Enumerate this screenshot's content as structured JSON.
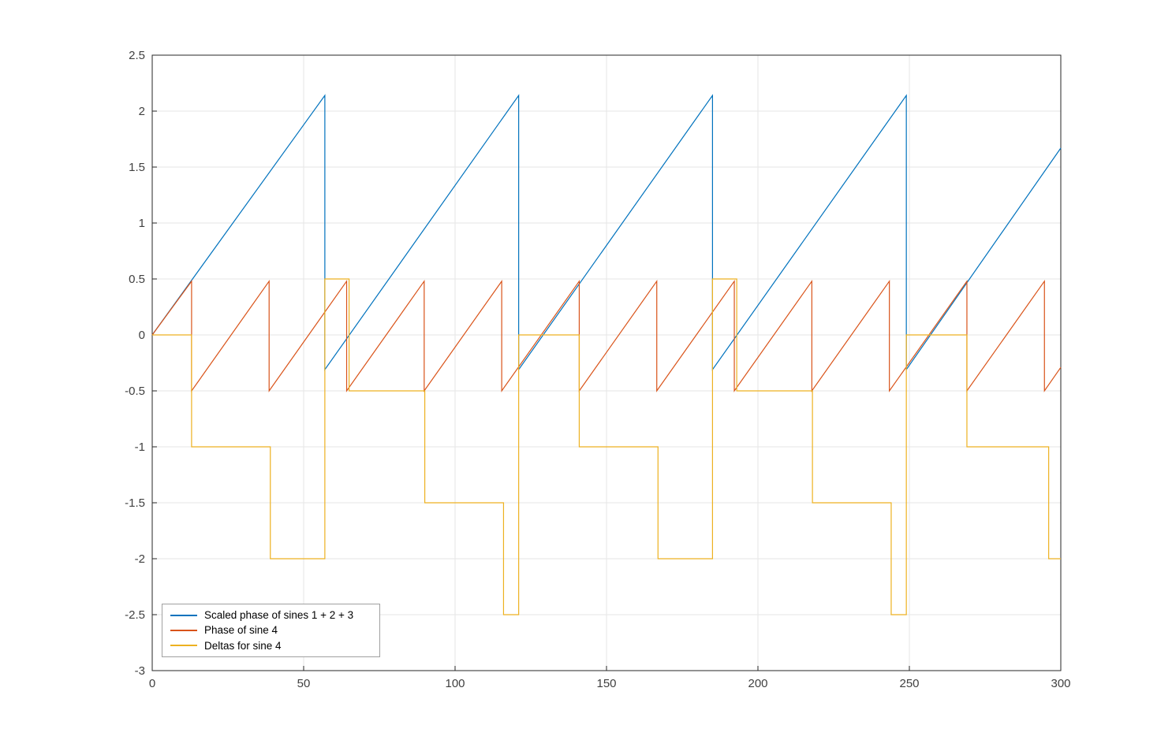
{
  "figure": {
    "background": "#ffffff"
  },
  "chart_data": {
    "type": "line",
    "title": "",
    "xlabel": "",
    "ylabel": "",
    "xlim": [
      0,
      300
    ],
    "ylim": [
      -3,
      2.5
    ],
    "x_ticks": [
      0,
      50,
      100,
      150,
      200,
      250,
      300
    ],
    "x_tick_labels": [
      "0",
      "50",
      "100",
      "150",
      "200",
      "250",
      "300"
    ],
    "y_ticks": [
      -3,
      -2.5,
      -2,
      -1.5,
      -1,
      -0.5,
      0,
      0.5,
      1,
      1.5,
      2,
      2.5
    ],
    "y_tick_labels": [
      "-3",
      "-2.5",
      "-2",
      "-1.5",
      "-1",
      "-0.5",
      "0",
      "0.5",
      "1",
      "1.5",
      "2",
      "2.5"
    ],
    "grid": true,
    "grid_color": "#e6e6e6",
    "axis_color": "#262626",
    "tick_label_color": "#404040",
    "legend_position": "bottom-left",
    "series": [
      {
        "name": "Scaled phase of sines 1 + 2 + 3",
        "color": "#0072BD",
        "points": [
          [
            0,
            0
          ],
          [
            57,
            2.14
          ],
          [
            57,
            -0.31
          ],
          [
            121,
            2.14
          ],
          [
            121,
            -0.31
          ],
          [
            185,
            2.14
          ],
          [
            185,
            -0.31
          ],
          [
            249,
            2.14
          ],
          [
            249,
            -0.31
          ],
          [
            300,
            1.67
          ]
        ]
      },
      {
        "name": "Phase of sine 4",
        "color": "#D95319",
        "points": [
          [
            0,
            0
          ],
          [
            13,
            0.48
          ],
          [
            13,
            -0.5
          ],
          [
            38.6,
            0.48
          ],
          [
            38.6,
            -0.5
          ],
          [
            64.2,
            0.48
          ],
          [
            64.2,
            -0.5
          ],
          [
            89.8,
            0.48
          ],
          [
            89.8,
            -0.5
          ],
          [
            115.4,
            0.48
          ],
          [
            115.4,
            -0.5
          ],
          [
            141,
            0.48
          ],
          [
            141,
            -0.5
          ],
          [
            166.6,
            0.48
          ],
          [
            166.6,
            -0.5
          ],
          [
            192.2,
            0.48
          ],
          [
            192.2,
            -0.5
          ],
          [
            217.8,
            0.48
          ],
          [
            217.8,
            -0.5
          ],
          [
            243.4,
            0.48
          ],
          [
            243.4,
            -0.5
          ],
          [
            269,
            0.48
          ],
          [
            269,
            -0.5
          ],
          [
            294.6,
            0.48
          ],
          [
            294.6,
            -0.5
          ],
          [
            300,
            -0.29
          ]
        ]
      },
      {
        "name": "Deltas for sine 4",
        "color": "#EDB120",
        "points": [
          [
            0,
            0
          ],
          [
            13,
            0
          ],
          [
            13,
            -1
          ],
          [
            39,
            -1
          ],
          [
            39,
            -2
          ],
          [
            57,
            -2
          ],
          [
            57,
            0.5
          ],
          [
            65,
            0.5
          ],
          [
            65,
            -0.5
          ],
          [
            90,
            -0.5
          ],
          [
            90,
            -1.5
          ],
          [
            116,
            -1.5
          ],
          [
            116,
            -2.5
          ],
          [
            121,
            -2.5
          ],
          [
            121,
            0
          ],
          [
            141,
            0
          ],
          [
            141,
            -1
          ],
          [
            167,
            -1
          ],
          [
            167,
            -2
          ],
          [
            185,
            -2
          ],
          [
            185,
            0.5
          ],
          [
            193,
            0.5
          ],
          [
            193,
            -0.5
          ],
          [
            218,
            -0.5
          ],
          [
            218,
            -1.5
          ],
          [
            244,
            -1.5
          ],
          [
            244,
            -2.5
          ],
          [
            249,
            -2.5
          ],
          [
            249,
            0
          ],
          [
            269,
            0
          ],
          [
            269,
            -1
          ],
          [
            296,
            -1
          ],
          [
            296,
            -2
          ],
          [
            300,
            -2
          ]
        ]
      }
    ]
  }
}
